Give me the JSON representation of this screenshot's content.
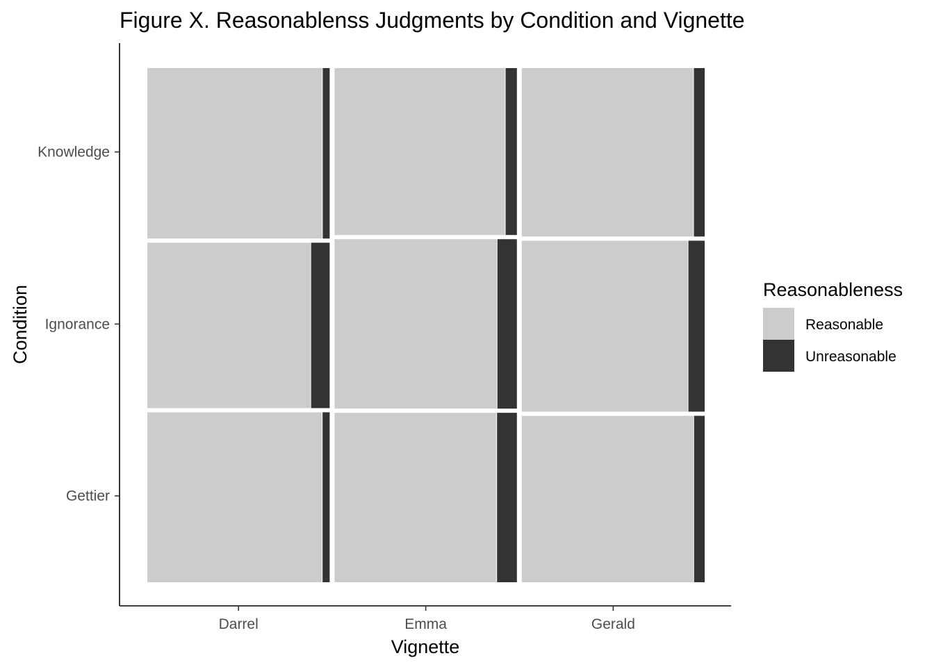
{
  "chart_data": {
    "type": "mosaic",
    "title": "Figure X. Reasonablenss Judgments by Condition and Vignette",
    "xlabel": "Vignette",
    "ylabel": "Condition",
    "categories": [
      "Darrel",
      "Emma",
      "Gerald"
    ],
    "conditions": [
      "Knowledge",
      "Ignorance",
      "Gettier"
    ],
    "vignette_widths": [
      0.333,
      0.333,
      0.334
    ],
    "condition_shares": [
      [
        0.337,
        0.33,
        0.333
      ],
      [
        0.327,
        0.335,
        0.338
      ],
      [
        0.336,
        0.335,
        0.329
      ]
    ],
    "series": [
      {
        "name": "Reasonable",
        "color": "#cccccc",
        "values": [
          [
            0.962,
            0.938,
            0.941
          ],
          [
            0.898,
            0.893,
            0.911
          ],
          [
            0.961,
            0.891,
            0.942
          ]
        ]
      },
      {
        "name": "Unreasonable",
        "color": "#333333",
        "values": [
          [
            0.038,
            0.062,
            0.059
          ],
          [
            0.102,
            0.107,
            0.089
          ],
          [
            0.039,
            0.109,
            0.058
          ]
        ]
      }
    ],
    "legend": {
      "title": "Reasonableness",
      "position": "right"
    },
    "grid": false
  }
}
